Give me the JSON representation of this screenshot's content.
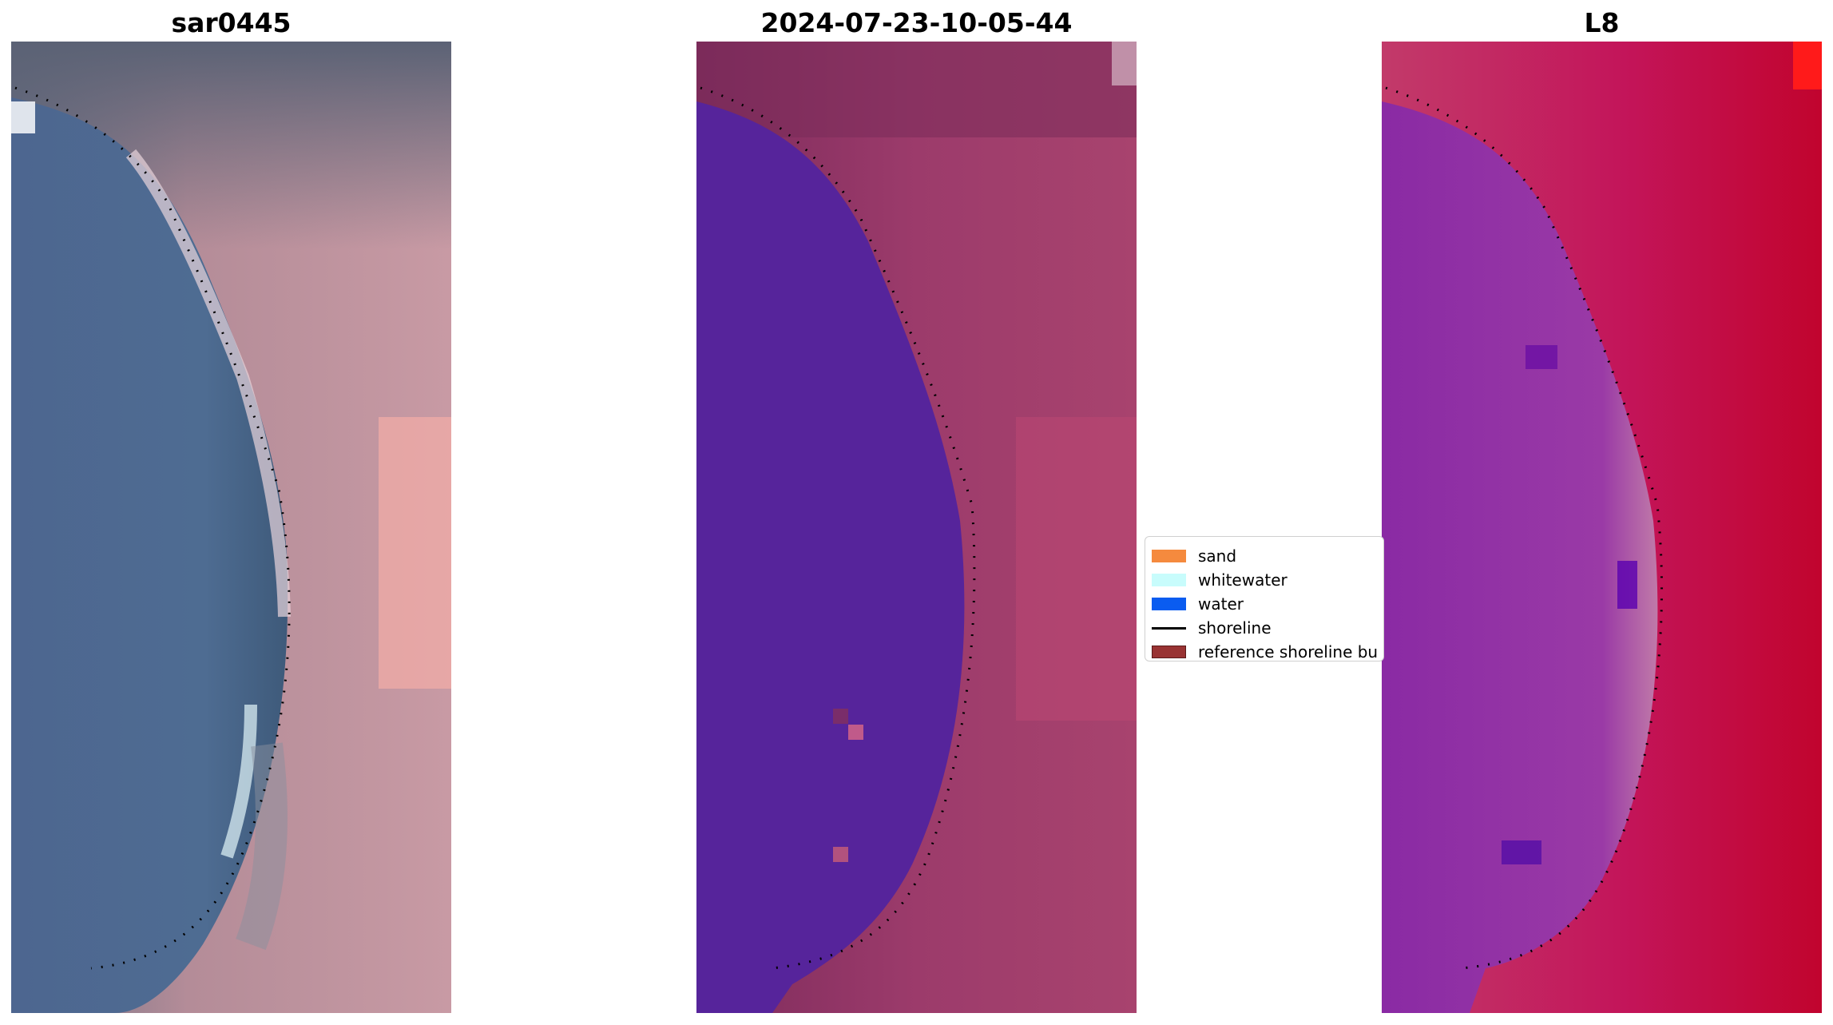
{
  "panels": [
    {
      "title": "sar0445",
      "image": "rgb-satellite-image"
    },
    {
      "title": "2024-07-23-10-05-44",
      "image": "classified-image"
    },
    {
      "title": "L8",
      "image": "mndwi-image"
    }
  ],
  "legend": {
    "items": [
      {
        "label": "sand",
        "color": "#f58a3e"
      },
      {
        "label": "whitewater",
        "color": "#c8fcfc"
      },
      {
        "label": "water",
        "color": "#0a5cf0"
      },
      {
        "label": "shoreline",
        "color": "#000000"
      },
      {
        "label": "reference shoreline bu",
        "color": "#993333"
      }
    ]
  }
}
